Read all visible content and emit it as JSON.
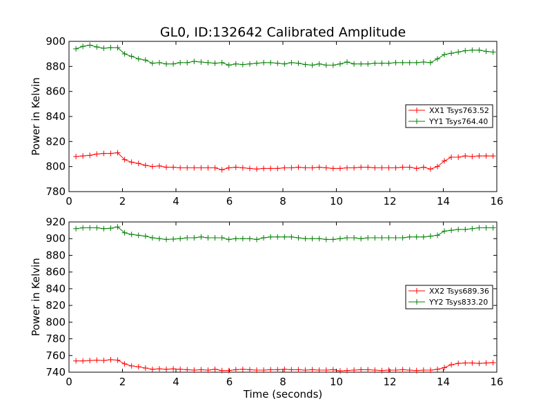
{
  "figure": {
    "title": "GL0, ID:132642 Calibrated Amplitude",
    "xlabel": "Time (seconds)"
  },
  "chart_data": [
    {
      "type": "line",
      "title": "GL0, ID:132642 Calibrated Amplitude",
      "xlabel": "",
      "ylabel": "Power in Kelvin",
      "xlim": [
        0,
        16
      ],
      "ylim": [
        780,
        900
      ],
      "xticks": [
        0,
        2,
        4,
        6,
        8,
        10,
        12,
        14,
        16
      ],
      "yticks": [
        780,
        800,
        820,
        840,
        860,
        880,
        900
      ],
      "grid": false,
      "legend_position": "right",
      "x": [
        0.26,
        0.52,
        0.78,
        1.04,
        1.3,
        1.56,
        1.82,
        2.08,
        2.34,
        2.6,
        2.86,
        3.12,
        3.38,
        3.64,
        3.9,
        4.16,
        4.42,
        4.68,
        4.94,
        5.2,
        5.46,
        5.72,
        5.98,
        6.24,
        6.5,
        6.76,
        7.02,
        7.28,
        7.54,
        7.8,
        8.06,
        8.32,
        8.58,
        8.84,
        9.1,
        9.36,
        9.62,
        9.88,
        10.14,
        10.4,
        10.66,
        10.92,
        11.18,
        11.44,
        11.7,
        11.96,
        12.22,
        12.48,
        12.74,
        13.0,
        13.26,
        13.52,
        13.78,
        14.04,
        14.3,
        14.56,
        14.82,
        15.08,
        15.34,
        15.6,
        15.86
      ],
      "series": [
        {
          "name": "XX1 Tsys763.52",
          "color": "#ff0000",
          "values": [
            808,
            808.5,
            809,
            810,
            810.5,
            810.5,
            811,
            805.5,
            803.5,
            802.5,
            801,
            800,
            800.5,
            799.5,
            799.5,
            799,
            799,
            799,
            799,
            799,
            799,
            797.5,
            799,
            799.5,
            799,
            798.5,
            798,
            798.5,
            798.5,
            798.5,
            799,
            799,
            799.5,
            799,
            799,
            799.5,
            799,
            798.5,
            798.5,
            799,
            799,
            799.5,
            799.5,
            799,
            799,
            799,
            799,
            799.5,
            799.5,
            798.5,
            799.5,
            798,
            800,
            804.5,
            807.5,
            807.5,
            808.5,
            808,
            808.5,
            808.5,
            808.5
          ]
        },
        {
          "name": "YY1 Tsys764.40",
          "color": "#008000",
          "values": [
            894,
            896,
            897,
            895.5,
            894.5,
            895,
            895,
            890,
            888,
            886,
            885,
            882.5,
            883,
            882,
            882,
            883,
            883,
            884,
            883.5,
            883,
            882.5,
            883,
            881,
            882,
            881.5,
            882,
            882.5,
            883,
            883,
            882.5,
            882,
            883,
            882.5,
            881.5,
            881,
            882,
            881,
            881,
            882,
            883.5,
            882,
            882,
            882,
            882.5,
            882.5,
            882.5,
            883,
            883,
            883,
            883,
            883.5,
            883,
            886,
            889.5,
            890.5,
            891.5,
            892.5,
            893,
            893,
            892,
            891.5
          ]
        }
      ]
    },
    {
      "type": "line",
      "title": "",
      "xlabel": "Time (seconds)",
      "ylabel": "Power in Kelvin",
      "xlim": [
        0,
        16
      ],
      "ylim": [
        740,
        920
      ],
      "xticks": [
        0,
        2,
        4,
        6,
        8,
        10,
        12,
        14,
        16
      ],
      "yticks": [
        740,
        760,
        780,
        800,
        820,
        840,
        860,
        880,
        900,
        920
      ],
      "grid": false,
      "legend_position": "right",
      "x": [
        0.26,
        0.52,
        0.78,
        1.04,
        1.3,
        1.56,
        1.82,
        2.08,
        2.34,
        2.6,
        2.86,
        3.12,
        3.38,
        3.64,
        3.9,
        4.16,
        4.42,
        4.68,
        4.94,
        5.2,
        5.46,
        5.72,
        5.98,
        6.24,
        6.5,
        6.76,
        7.02,
        7.28,
        7.54,
        7.8,
        8.06,
        8.32,
        8.58,
        8.84,
        9.1,
        9.36,
        9.62,
        9.88,
        10.14,
        10.4,
        10.66,
        10.92,
        11.18,
        11.44,
        11.7,
        11.96,
        12.22,
        12.48,
        12.74,
        13.0,
        13.26,
        13.52,
        13.78,
        14.04,
        14.3,
        14.56,
        14.82,
        15.08,
        15.34,
        15.6,
        15.86
      ],
      "series": [
        {
          "name": "XX2 Tsys689.36",
          "color": "#ff0000",
          "values": [
            753.5,
            753.5,
            754,
            754.5,
            754,
            755,
            754.5,
            750,
            747.5,
            746.5,
            745,
            743.5,
            744,
            743.5,
            744,
            743.5,
            743,
            742.5,
            743,
            742.5,
            743.5,
            742,
            742,
            743,
            743.5,
            743,
            742.5,
            742.5,
            743,
            743,
            743.5,
            743,
            743,
            742.5,
            743,
            742.5,
            742.5,
            743,
            741.5,
            742,
            742.5,
            743,
            743,
            742.5,
            742,
            742.5,
            742.5,
            743,
            742.5,
            742,
            742.5,
            742.5,
            743.5,
            745.5,
            749,
            750.5,
            751,
            751,
            750.5,
            751,
            751.5
          ]
        },
        {
          "name": "YY2 Tsys833.20",
          "color": "#008000",
          "values": [
            912,
            913,
            913,
            913,
            912,
            912.5,
            914,
            907,
            905,
            904,
            903,
            901,
            900,
            899,
            899.5,
            900,
            901,
            901,
            902,
            901,
            901,
            901,
            899,
            900,
            900,
            900,
            899,
            901,
            902,
            902,
            902,
            902,
            901,
            900,
            900,
            900,
            899,
            899,
            900,
            901,
            901,
            900,
            901,
            901,
            901,
            901,
            901,
            901,
            902,
            902,
            902,
            903,
            904,
            909,
            910,
            911,
            911,
            912,
            913,
            913,
            913
          ]
        }
      ]
    }
  ]
}
